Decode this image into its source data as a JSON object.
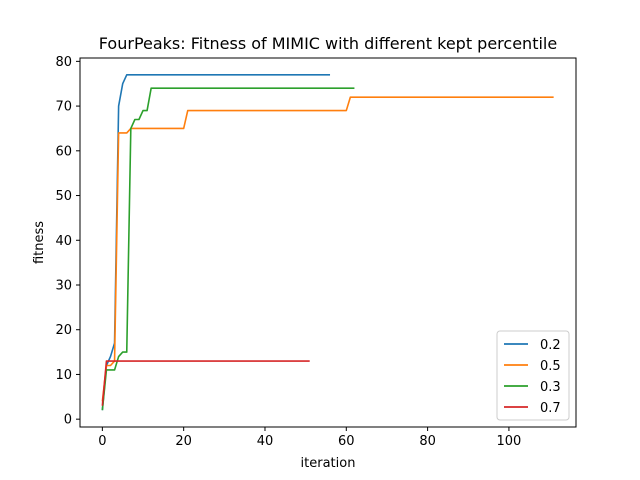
{
  "chart_data": {
    "type": "line",
    "title": "FourPeaks: Fitness of MIMIC with different kept percentile",
    "xlabel": "iteration",
    "ylabel": "fitness",
    "xlim": [
      -5.5,
      116.5
    ],
    "ylim": [
      -1.75,
      80.75
    ],
    "xticks": [
      0,
      20,
      40,
      60,
      80,
      100
    ],
    "yticks": [
      0,
      10,
      20,
      30,
      40,
      50,
      60,
      70,
      80
    ],
    "grid": false,
    "legend_position": "lower-right",
    "series": [
      {
        "name": "0.2",
        "color": "#1f77b4",
        "x": [
          0,
          1,
          2,
          3,
          4,
          5,
          6,
          56
        ],
        "y": [
          2,
          12,
          14,
          17,
          70,
          75,
          77,
          77
        ]
      },
      {
        "name": "0.5",
        "color": "#ff7f0e",
        "x": [
          0,
          1,
          2,
          3,
          4,
          5,
          6,
          7,
          20,
          21,
          60,
          61,
          111
        ],
        "y": [
          4,
          12,
          12,
          13,
          64,
          64,
          64,
          65,
          65,
          69,
          69,
          72,
          72
        ]
      },
      {
        "name": "0.3",
        "color": "#2ca02c",
        "x": [
          0,
          1,
          2,
          3,
          4,
          5,
          6,
          7,
          8,
          9,
          10,
          11,
          12,
          62
        ],
        "y": [
          2,
          11,
          11,
          11,
          14,
          15,
          15,
          65,
          67,
          67,
          69,
          69,
          74,
          74
        ]
      },
      {
        "name": "0.7",
        "color": "#d62728",
        "x": [
          0,
          1,
          51
        ],
        "y": [
          3,
          13,
          13
        ]
      }
    ]
  }
}
